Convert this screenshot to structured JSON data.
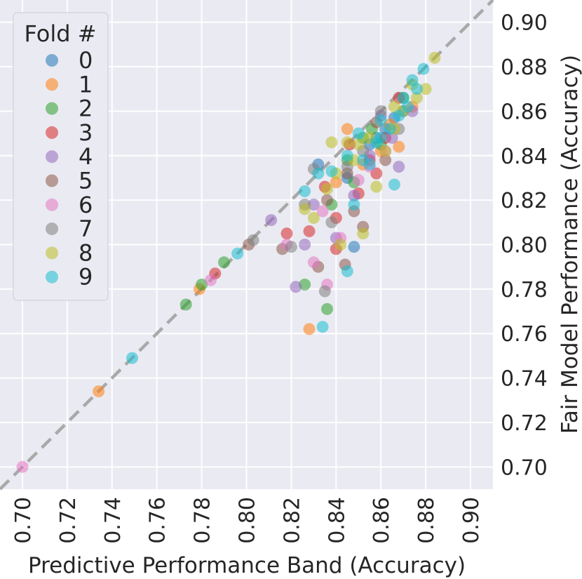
{
  "chart_data": {
    "type": "scatter",
    "xlabel": "Predictive Performance Band (Accuracy)",
    "ylabel": "Fair Model Performance (Accuracy)",
    "xlim": [
      0.69,
      0.91
    ],
    "ylim": [
      0.69,
      0.91
    ],
    "xticks": [
      "0.70",
      "0.72",
      "0.74",
      "0.76",
      "0.78",
      "0.80",
      "0.82",
      "0.84",
      "0.86",
      "0.88",
      "0.90"
    ],
    "yticks": [
      "0.70",
      "0.72",
      "0.74",
      "0.76",
      "0.78",
      "0.80",
      "0.82",
      "0.84",
      "0.86",
      "0.88",
      "0.90"
    ],
    "grid": true,
    "reference_line": "y = x (dashed)",
    "legend": {
      "title": "Fold #",
      "placement": "top-left"
    },
    "series": [
      {
        "name": "0",
        "color": "#1f77b4",
        "points": [
          [
            0.832,
            0.836
          ],
          [
            0.848,
            0.799
          ],
          [
            0.855,
            0.845
          ],
          [
            0.862,
            0.852
          ],
          [
            0.87,
            0.86
          ],
          [
            0.845,
            0.83
          ],
          [
            0.858,
            0.848
          ],
          [
            0.866,
            0.857
          ]
        ]
      },
      {
        "name": "1",
        "color": "#ff7f0e",
        "points": [
          [
            0.734,
            0.734
          ],
          [
            0.779,
            0.78
          ],
          [
            0.828,
            0.762
          ],
          [
            0.845,
            0.852
          ],
          [
            0.86,
            0.842
          ],
          [
            0.868,
            0.844
          ],
          [
            0.852,
            0.836
          ],
          [
            0.874,
            0.862
          ],
          [
            0.84,
            0.828
          ],
          [
            0.864,
            0.854
          ]
        ]
      },
      {
        "name": "2",
        "color": "#2ca02c",
        "points": [
          [
            0.773,
            0.773
          ],
          [
            0.78,
            0.782
          ],
          [
            0.79,
            0.792
          ],
          [
            0.836,
            0.771
          ],
          [
            0.826,
            0.782
          ],
          [
            0.845,
            0.838
          ],
          [
            0.852,
            0.848
          ],
          [
            0.86,
            0.845
          ],
          [
            0.838,
            0.818
          ],
          [
            0.856,
            0.852
          ],
          [
            0.87,
            0.866
          ],
          [
            0.848,
            0.828
          ]
        ]
      },
      {
        "name": "3",
        "color": "#d62728",
        "points": [
          [
            0.786,
            0.787
          ],
          [
            0.818,
            0.805
          ],
          [
            0.84,
            0.812
          ],
          [
            0.85,
            0.823
          ],
          [
            0.858,
            0.832
          ],
          [
            0.846,
            0.845
          ],
          [
            0.868,
            0.866
          ],
          [
            0.862,
            0.848
          ],
          [
            0.835,
            0.826
          ],
          [
            0.855,
            0.838
          ],
          [
            0.84,
            0.798
          ],
          [
            0.828,
            0.806
          ]
        ]
      },
      {
        "name": "4",
        "color": "#9467bd",
        "points": [
          [
            0.811,
            0.811
          ],
          [
            0.822,
            0.781
          ],
          [
            0.84,
            0.803
          ],
          [
            0.855,
            0.84
          ],
          [
            0.865,
            0.848
          ],
          [
            0.868,
            0.835
          ],
          [
            0.83,
            0.818
          ],
          [
            0.848,
            0.822
          ],
          [
            0.86,
            0.858
          ],
          [
            0.826,
            0.8
          ],
          [
            0.874,
            0.86
          ]
        ]
      },
      {
        "name": "5",
        "color": "#8c564b",
        "points": [
          [
            0.801,
            0.8
          ],
          [
            0.816,
            0.798
          ],
          [
            0.832,
            0.79
          ],
          [
            0.844,
            0.791
          ],
          [
            0.852,
            0.808
          ],
          [
            0.858,
            0.855
          ],
          [
            0.862,
            0.838
          ],
          [
            0.848,
            0.815
          ],
          [
            0.836,
            0.82
          ],
          [
            0.845,
            0.832
          ]
        ]
      },
      {
        "name": "6",
        "color": "#e377c2",
        "points": [
          [
            0.7,
            0.7
          ],
          [
            0.784,
            0.784
          ],
          [
            0.83,
            0.792
          ],
          [
            0.836,
            0.782
          ],
          [
            0.842,
            0.803
          ],
          [
            0.855,
            0.835
          ],
          [
            0.862,
            0.842
          ],
          [
            0.818,
            0.8
          ],
          [
            0.834,
            0.815
          ],
          [
            0.85,
            0.829
          ]
        ]
      },
      {
        "name": "7",
        "color": "#7f7f7f",
        "points": [
          [
            0.803,
            0.802
          ],
          [
            0.82,
            0.799
          ],
          [
            0.835,
            0.779
          ],
          [
            0.838,
            0.81
          ],
          [
            0.845,
            0.835
          ],
          [
            0.86,
            0.86
          ],
          [
            0.868,
            0.852
          ],
          [
            0.826,
            0.818
          ],
          [
            0.83,
            0.834
          ],
          [
            0.852,
            0.842
          ]
        ]
      },
      {
        "name": "8",
        "color": "#bcbd22",
        "points": [
          [
            0.884,
            0.884
          ],
          [
            0.88,
            0.87
          ],
          [
            0.876,
            0.866
          ],
          [
            0.87,
            0.86
          ],
          [
            0.866,
            0.852
          ],
          [
            0.862,
            0.842
          ],
          [
            0.855,
            0.848
          ],
          [
            0.85,
            0.845
          ],
          [
            0.845,
            0.846
          ],
          [
            0.84,
            0.832
          ],
          [
            0.836,
            0.825
          ],
          [
            0.83,
            0.812
          ],
          [
            0.826,
            0.816
          ],
          [
            0.848,
            0.838
          ],
          [
            0.858,
            0.826
          ],
          [
            0.852,
            0.805
          ],
          [
            0.842,
            0.8
          ],
          [
            0.838,
            0.846
          ],
          [
            0.866,
            0.862
          ],
          [
            0.874,
            0.872
          ]
        ]
      },
      {
        "name": "9",
        "color": "#17becf",
        "points": [
          [
            0.749,
            0.749
          ],
          [
            0.796,
            0.796
          ],
          [
            0.834,
            0.763
          ],
          [
            0.845,
            0.788
          ],
          [
            0.848,
            0.818
          ],
          [
            0.855,
            0.836
          ],
          [
            0.86,
            0.848
          ],
          [
            0.864,
            0.852
          ],
          [
            0.868,
            0.858
          ],
          [
            0.872,
            0.862
          ],
          [
            0.876,
            0.87
          ],
          [
            0.879,
            0.879
          ],
          [
            0.87,
            0.866
          ],
          [
            0.858,
            0.846
          ],
          [
            0.852,
            0.838
          ],
          [
            0.845,
            0.84
          ],
          [
            0.838,
            0.833
          ],
          [
            0.832,
            0.832
          ],
          [
            0.826,
            0.824
          ],
          [
            0.866,
            0.827
          ],
          [
            0.85,
            0.85
          ],
          [
            0.86,
            0.856
          ],
          [
            0.874,
            0.874
          ]
        ]
      }
    ]
  }
}
